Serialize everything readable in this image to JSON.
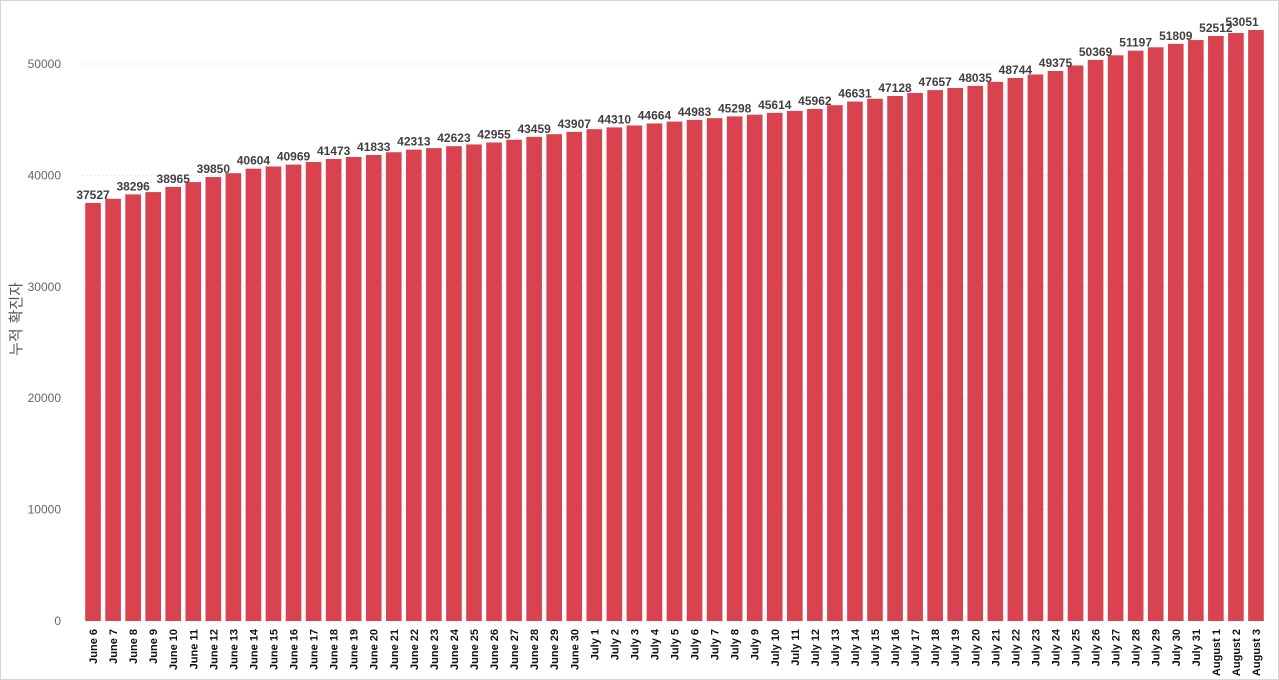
{
  "chart_data": {
    "type": "bar",
    "title": "",
    "xlabel": "",
    "ylabel": "누적 확진자",
    "ylim": [
      0,
      55000
    ],
    "yticks": [
      0,
      10000,
      20000,
      30000,
      40000,
      50000
    ],
    "ytick_labels": [
      "0",
      "10000",
      "20000",
      "30000",
      "40000",
      "50000"
    ],
    "grid": true,
    "bar_color": "#d9434f",
    "categories": [
      "June 6",
      "June 7",
      "June 8",
      "June 9",
      "June 10",
      "June 11",
      "June 12",
      "June 13",
      "June 14",
      "June 15",
      "June 16",
      "June 17",
      "June 18",
      "June 19",
      "June 20",
      "June 21",
      "June 22",
      "June 23",
      "June 24",
      "June 25",
      "June 26",
      "June 27",
      "June 28",
      "June 29",
      "June 30",
      "July 1",
      "July 2",
      "July 3",
      "July 4",
      "July 5",
      "July 6",
      "July 7",
      "July 8",
      "July 9",
      "July 10",
      "July 11",
      "July 12",
      "July 13",
      "July 14",
      "July 15",
      "July 16",
      "July 17",
      "July 18",
      "July 19",
      "July 20",
      "July 21",
      "July 22",
      "July 23",
      "July 24",
      "July 25",
      "July 26",
      "July 27",
      "July 28",
      "July 29",
      "July 30",
      "July 31",
      "August 1",
      "August 2",
      "August 3"
    ],
    "values": [
      37527,
      37900,
      38296,
      38500,
      38965,
      39400,
      39850,
      40200,
      40604,
      40800,
      40969,
      41200,
      41473,
      41650,
      41833,
      42080,
      42313,
      42450,
      42623,
      42780,
      42955,
      43200,
      43459,
      43700,
      43907,
      44150,
      44310,
      44480,
      44664,
      44830,
      44983,
      45140,
      45298,
      45450,
      45614,
      45790,
      45962,
      46300,
      46631,
      46880,
      47128,
      47400,
      47657,
      47850,
      48035,
      48400,
      48744,
      49060,
      49375,
      49870,
      50369,
      50780,
      51197,
      51500,
      51809,
      52150,
      52512,
      52780,
      53051
    ],
    "labels": [
      "37527",
      "",
      "38296",
      "",
      "38965",
      "",
      "39850",
      "",
      "40604",
      "",
      "40969",
      "",
      "41473",
      "",
      "41833",
      "",
      "42313",
      "",
      "42623",
      "",
      "42955",
      "",
      "43459",
      "",
      "43907",
      "",
      "44310",
      "",
      "44664",
      "",
      "44983",
      "",
      "45298",
      "",
      "45614",
      "",
      "45962",
      "",
      "46631",
      "",
      "47128",
      "",
      "47657",
      "",
      "48035",
      "",
      "48744",
      "",
      "49375",
      "",
      "50369",
      "",
      "51197",
      "",
      "51809",
      "",
      "52512",
      "",
      "53051"
    ]
  }
}
